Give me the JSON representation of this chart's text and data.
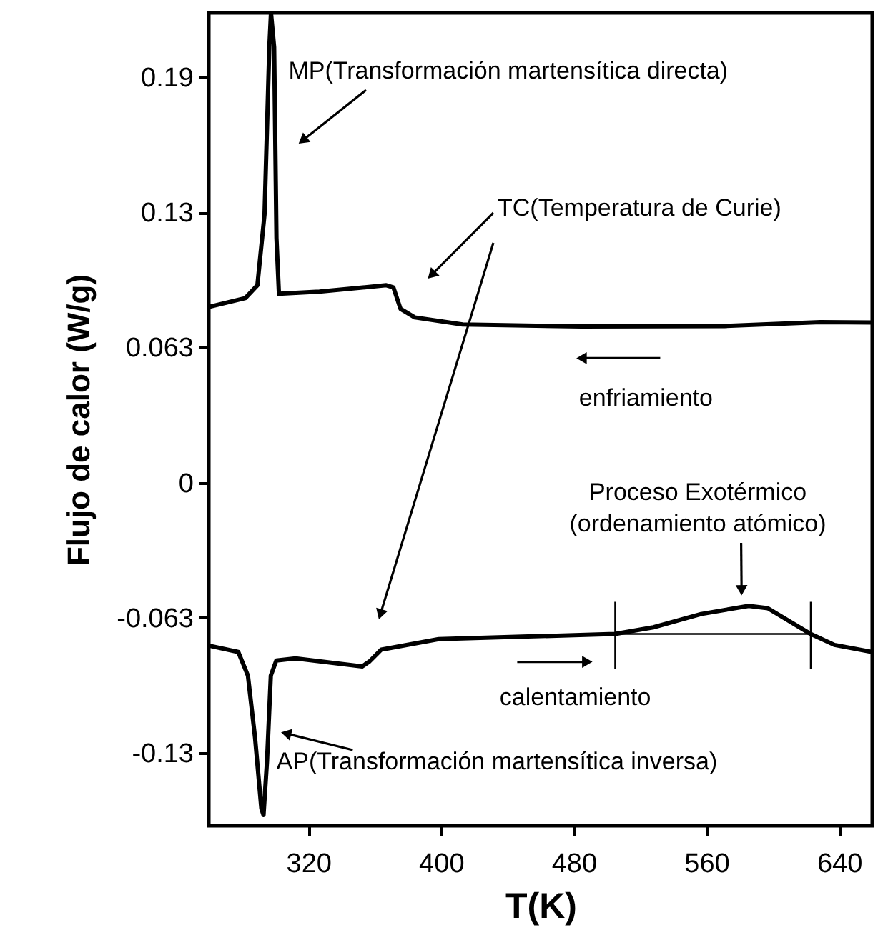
{
  "chart_data": {
    "type": "line",
    "xlabel": "T(K)",
    "ylabel": "Flujo de calor (W/g)",
    "xlim": [
      260,
      660
    ],
    "ylim": [
      -0.16,
      0.219
    ],
    "xticks": [
      320,
      400,
      480,
      560,
      640
    ],
    "yticks": [
      {
        "value": 0.189,
        "label": "0.19"
      },
      {
        "value": 0.126,
        "label": "0.13"
      },
      0.063,
      0,
      -0.063,
      {
        "value": -0.126,
        "label": "-0.13"
      }
    ],
    "grid": false,
    "marker": "none",
    "line_style": "solid",
    "series": [
      {
        "color": "#000000",
        "x": [
          260.6,
          282,
          289.3,
          293.6,
          296.5,
          297.5,
          299.4,
          300.8,
          302.3,
          326.7,
          367,
          371.3,
          375.6,
          384.2,
          413,
          484.8,
          571,
          628.6,
          660
        ],
        "values": [
          0.082,
          0.086,
          0.092,
          0.125,
          0.203,
          0.219,
          0.203,
          0.114,
          0.088,
          0.089,
          0.092,
          0.091,
          0.081,
          0.077,
          0.0737,
          0.0728,
          0.073,
          0.0748,
          0.0746
        ]
      },
      {
        "color": "#000000",
        "x": [
          260.6,
          277.8,
          283.6,
          287.9,
          291.7,
          293,
          295.1,
          297.4,
          300.7,
          312.3,
          352.5,
          356.9,
          364,
          398.6,
          456,
          505,
          528,
          556.8,
          585.5,
          597,
          622.9,
          637.2,
          660
        ],
        "values": [
          -0.0761,
          -0.079,
          -0.09,
          -0.119,
          -0.152,
          -0.155,
          -0.13,
          -0.09,
          -0.083,
          -0.082,
          -0.0857,
          -0.0834,
          -0.0779,
          -0.073,
          -0.0717,
          -0.0706,
          -0.0675,
          -0.0613,
          -0.0575,
          -0.0586,
          -0.0706,
          -0.0757,
          -0.079
        ]
      },
      {
        "color": "#000000",
        "x": [
          505,
          622.9
        ],
        "values": [
          -0.0706,
          -0.0706
        ]
      },
      {
        "color": "#000000",
        "x": [
          505,
          505
        ],
        "values": [
          -0.0556,
          -0.0868
        ]
      },
      {
        "color": "#000000",
        "x": [
          622.9,
          622.9
        ],
        "values": [
          -0.0556,
          -0.0868
        ]
      }
    ],
    "annotations": [
      "MP(Transformación martensítica directa)",
      {
        "text": "TC(Temperatura de Curie)",
        "x": 394.3,
        "y": 0.0968
      },
      {
        "text": "Proceso Exotérmico\n(ordenamiento atómico)",
        "x": 581.2,
        "y": -0.0502
      },
      {
        "text": "AP(Transformación martensítica inversa)",
        "x": 306.6,
        "y": -0.117
      },
      "enfriamiento",
      "calentamiento"
    ]
  }
}
